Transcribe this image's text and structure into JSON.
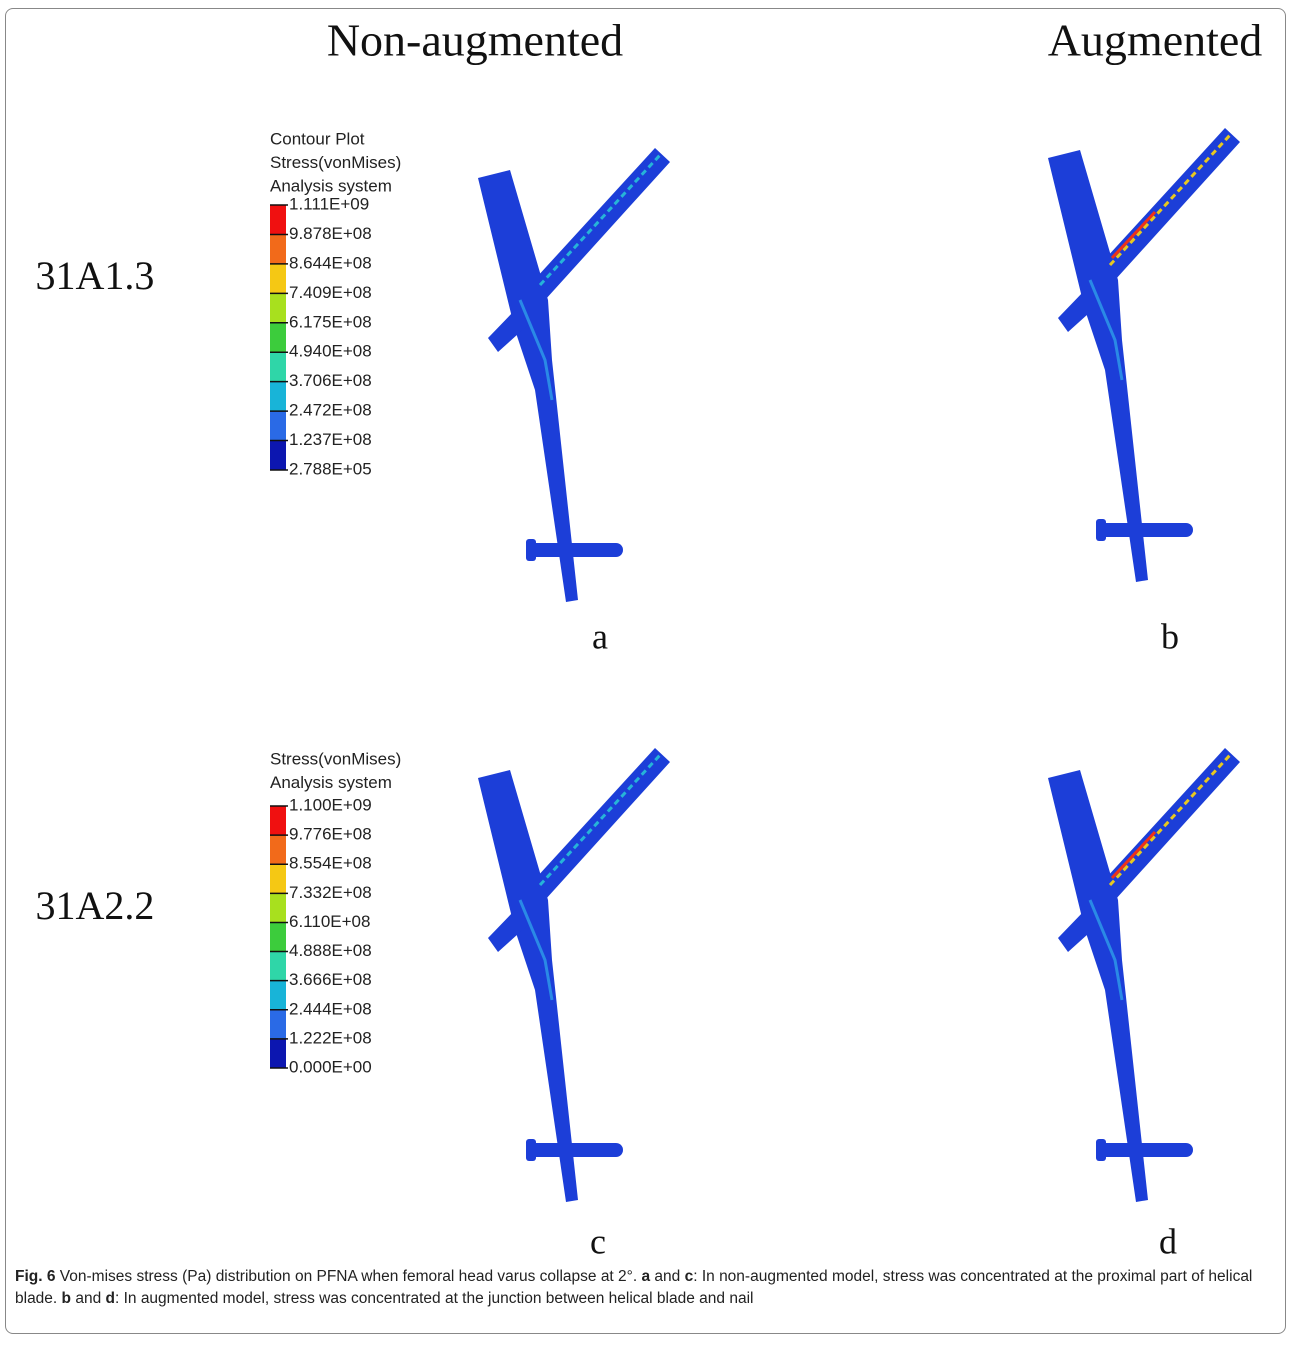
{
  "figure": {
    "column_headers": [
      "Non-augmented",
      "Augmented"
    ],
    "row_labels": [
      "31A1.3",
      "31A2.2"
    ],
    "legends": [
      {
        "title_lines": [
          "Contour Plot",
          "Stress(vonMises)",
          "Analysis system"
        ],
        "labels": [
          "1.111E+09",
          "9.878E+08",
          "8.644E+08",
          "7.409E+08",
          "6.175E+08",
          "4.940E+08",
          "3.706E+08",
          "2.472E+08",
          "1.237E+08",
          "2.788E+05"
        ],
        "colors": [
          "#f01010",
          "#f26a1a",
          "#f5c814",
          "#a8e01e",
          "#3ccc3c",
          "#2fd6a8",
          "#18b4d8",
          "#2a6ae6",
          "#0c16b0"
        ]
      },
      {
        "title_lines": [
          "Stress(vonMises)",
          "Analysis system"
        ],
        "labels": [
          "1.100E+09",
          "9.776E+08",
          "8.554E+08",
          "7.332E+08",
          "6.110E+08",
          "4.888E+08",
          "3.666E+08",
          "2.444E+08",
          "1.222E+08",
          "0.000E+00"
        ],
        "colors": [
          "#f01010",
          "#f26a1a",
          "#f5c814",
          "#a8e01e",
          "#3ccc3c",
          "#2fd6a8",
          "#18b4d8",
          "#2a6ae6",
          "#0c16b0"
        ]
      }
    ],
    "panel_letters": [
      "a",
      "b",
      "c",
      "d"
    ]
  },
  "caption": {
    "label": "Fig. 6",
    "segments": [
      {
        "text": " Von-mises stress (Pa) distribution on PFNA when femoral head varus collapse at 2°. ",
        "bold": false
      },
      {
        "text": "a",
        "bold": true
      },
      {
        "text": " and ",
        "bold": false
      },
      {
        "text": "c",
        "bold": true
      },
      {
        "text": ": In non-augmented model, stress was concentrated at the proximal part of helical blade. ",
        "bold": false
      },
      {
        "text": "b",
        "bold": true
      },
      {
        "text": " and ",
        "bold": false
      },
      {
        "text": "d",
        "bold": true
      },
      {
        "text": ": In augmented model, stress was concentrated at the junction between helical blade and nail",
        "bold": false
      }
    ]
  }
}
